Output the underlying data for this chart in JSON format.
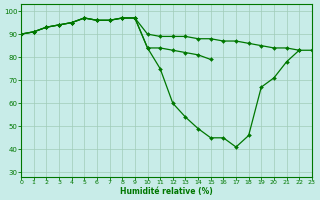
{
  "xlabel": "Humidité relative (%)",
  "xlim": [
    0,
    23
  ],
  "ylim": [
    28,
    103
  ],
  "yticks": [
    30,
    40,
    50,
    60,
    70,
    80,
    90,
    100
  ],
  "xticks": [
    0,
    1,
    2,
    3,
    4,
    5,
    6,
    7,
    8,
    9,
    10,
    11,
    12,
    13,
    14,
    15,
    16,
    17,
    18,
    19,
    20,
    21,
    22,
    23
  ],
  "line_color": "#007700",
  "bg_color": "#c8ece8",
  "grid_color": "#a0ccb8",
  "lines": [
    [
      90,
      91,
      93,
      94,
      95,
      97,
      96,
      96,
      97,
      97,
      90,
      89,
      89,
      89,
      88,
      88,
      87,
      87,
      86,
      85,
      84,
      84,
      83,
      83
    ],
    [
      90,
      91,
      93,
      94,
      95,
      97,
      96,
      96,
      97,
      97,
      84,
      84,
      83,
      82,
      81,
      79,
      null,
      null,
      null,
      null,
      null,
      null,
      null,
      null
    ],
    [
      90,
      91,
      93,
      94,
      95,
      97,
      96,
      96,
      97,
      97,
      84,
      75,
      60,
      54,
      49,
      45,
      45,
      41,
      46,
      67,
      71,
      78,
      83,
      null
    ]
  ]
}
